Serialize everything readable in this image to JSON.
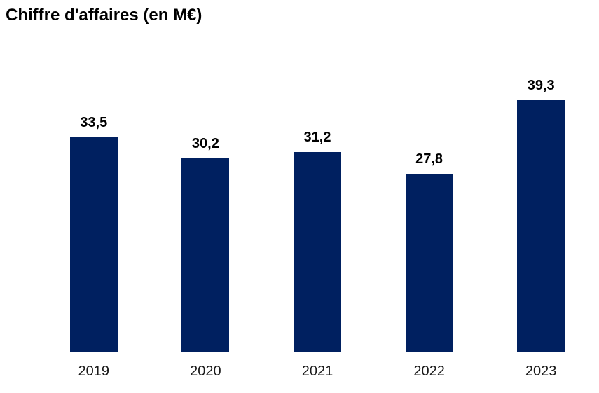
{
  "chart_data": {
    "type": "bar",
    "title": "Chiffre d'affaires (en M€)",
    "categories": [
      "2019",
      "2020",
      "2021",
      "2022",
      "2023"
    ],
    "values": [
      33.5,
      30.2,
      31.2,
      27.8,
      39.3
    ],
    "value_labels": [
      "33,5",
      "30,2",
      "31,2",
      "27,8",
      "39,3"
    ],
    "xlabel": "",
    "ylabel": "",
    "ylim": [
      0,
      44
    ],
    "bar_color": "#002060",
    "label_color": "#000000",
    "tick_label_color": "#1a1a1a",
    "grid": false,
    "axis_lines": false,
    "legend_position": "none"
  }
}
